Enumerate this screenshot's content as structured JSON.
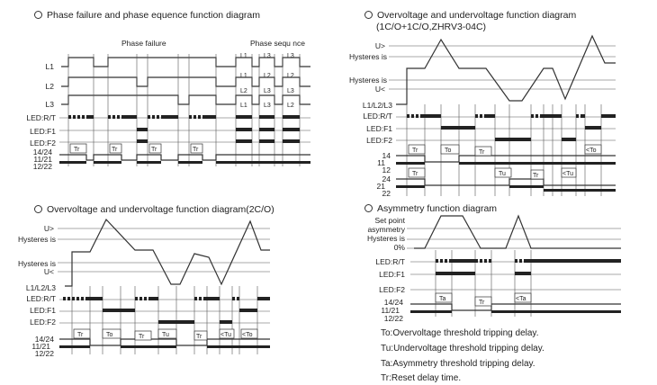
{
  "titles": {
    "phase": "Phase failure and phase equence function diagram",
    "ovuv1": "Overvoltage and undervoltage function diagram",
    "ovuv1_sub": "(1C/O+1C/O,ZHRV3-04C)",
    "ovuv2": "Overvoltage and undervoltage function diagram(2C/O)",
    "asym": "Asymmetry function diagram"
  },
  "phase": {
    "section_failure": "Phase failure",
    "section_sequence": "Phase sequ nce",
    "rows": [
      "L1",
      "L2",
      "L3",
      "LED:R/T",
      "LED:F1",
      "LED:F2",
      "14/24",
      "11/21",
      "12/22"
    ],
    "seq_labels": [
      "L1",
      "L3",
      "L3",
      "L1",
      "L2",
      "L2",
      "L2",
      "L3",
      "L3",
      "L1",
      "L3",
      "L2"
    ],
    "delay": "Tr"
  },
  "ovuv1": {
    "levels": [
      "U>",
      "Hysteres is",
      "Hysteres is",
      "U<"
    ],
    "rows": [
      "L1/L2/L3",
      "LED:R/T",
      "LED:F1",
      "LED:F2",
      "14",
      "11",
      "12",
      "24",
      "21",
      "22"
    ],
    "delays": [
      "Tr",
      "To",
      "Tr",
      "Tu",
      "Tr",
      "<Tu",
      "<To",
      "Tr"
    ]
  },
  "ovuv2": {
    "levels": [
      "U>",
      "Hysteres is",
      "Hysteres is",
      "U<"
    ],
    "rows": [
      "L1/L2/L3",
      "LED:R/T",
      "LED:F1",
      "LED:F2",
      "14/24",
      "11/21",
      "12/22"
    ],
    "delays": [
      "Tr",
      "To",
      "Tr",
      "Tu",
      "Tr",
      "<Tu",
      "<To"
    ]
  },
  "asym": {
    "levels": [
      "Set point",
      "asymmetry",
      "Hysteres is",
      "0%"
    ],
    "rows": [
      "LED:R/T",
      "LED:F1",
      "LED:F2",
      "14/24",
      "11/21",
      "12/22"
    ],
    "delays": [
      "Ta",
      "Tr",
      "<Ta"
    ]
  },
  "legend": [
    "To:Overvoltage threshold tripping delay.",
    "Tu:Undervoltage threshold tripping delay.",
    "Ta:Asymmetry threshold tripping delay.",
    "Tr:Reset delay time."
  ]
}
